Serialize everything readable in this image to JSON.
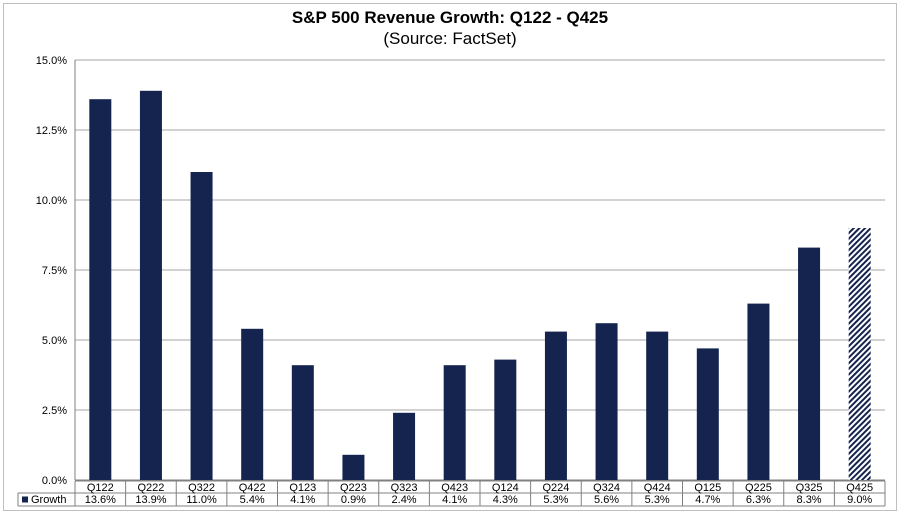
{
  "chart_data": {
    "type": "bar",
    "title": "S&P 500 Revenue Growth: Q122 - Q425",
    "subtitle": "(Source: FactSet)",
    "categories": [
      "Q122",
      "Q222",
      "Q322",
      "Q422",
      "Q123",
      "Q223",
      "Q323",
      "Q423",
      "Q124",
      "Q224",
      "Q324",
      "Q424",
      "Q125",
      "Q225",
      "Q325",
      "Q425"
    ],
    "series": [
      {
        "name": "Growth",
        "values": [
          13.6,
          13.9,
          11.0,
          5.4,
          4.1,
          0.9,
          2.4,
          4.1,
          4.3,
          5.3,
          5.6,
          5.3,
          4.7,
          6.3,
          8.3,
          9.0
        ]
      }
    ],
    "data_labels": [
      "13.6%",
      "13.9%",
      "11.0%",
      "5.4%",
      "4.1%",
      "0.9%",
      "2.4%",
      "4.1%",
      "4.3%",
      "5.3%",
      "5.6%",
      "5.3%",
      "4.7%",
      "6.3%",
      "8.3%",
      "9.0%"
    ],
    "estimated_categories": [
      "Q425"
    ],
    "yticks": [
      "0.0%",
      "2.5%",
      "5.0%",
      "7.5%",
      "10.0%",
      "12.5%",
      "15.0%"
    ],
    "ylim": [
      0,
      15
    ],
    "grid": true,
    "legend": "data-table",
    "colors": {
      "bar": "#15244f",
      "grid": "#a6a6a6"
    }
  }
}
